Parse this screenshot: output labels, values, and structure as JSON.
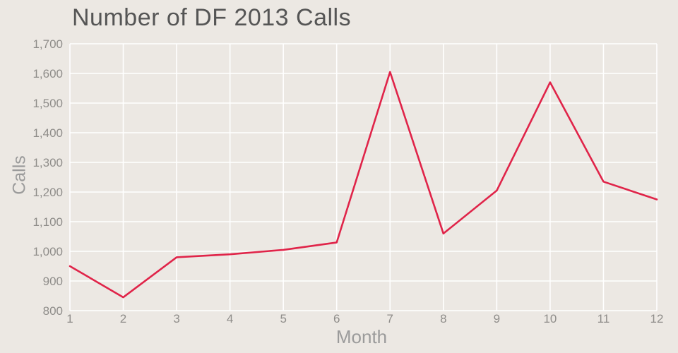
{
  "title": "Number of DF 2013 Calls",
  "colors": {
    "background": "#ece8e3",
    "grid": "#ffffff",
    "line": "#e02449",
    "title_text": "#555555",
    "axis_label_text": "#9b9b9b",
    "tick_text": "#8f8d8a"
  },
  "chart_data": {
    "type": "line",
    "title": "Number of DF 2013 Calls",
    "xlabel": "Month",
    "ylabel": "Calls",
    "x": [
      1,
      2,
      3,
      4,
      5,
      6,
      7,
      8,
      9,
      10,
      11,
      12
    ],
    "values": [
      950,
      845,
      980,
      990,
      1005,
      1030,
      1605,
      1060,
      1205,
      1570,
      1235,
      1175
    ],
    "xlim": [
      1,
      12
    ],
    "ylim": [
      800,
      1700
    ],
    "xticks": [
      1,
      2,
      3,
      4,
      5,
      6,
      7,
      8,
      9,
      10,
      11,
      12
    ],
    "xtick_labels": [
      "1",
      "2",
      "3",
      "4",
      "5",
      "6",
      "7",
      "8",
      "9",
      "10",
      "11",
      "12"
    ],
    "yticks": [
      800,
      900,
      1000,
      1100,
      1200,
      1300,
      1400,
      1500,
      1600,
      1700
    ],
    "ytick_labels": [
      "800",
      "900",
      "1,000",
      "1,100",
      "1,200",
      "1,300",
      "1,400",
      "1,500",
      "1,600",
      "1,700"
    ],
    "grid": true,
    "legend": "none",
    "series_name": "DF 2013 Calls"
  }
}
